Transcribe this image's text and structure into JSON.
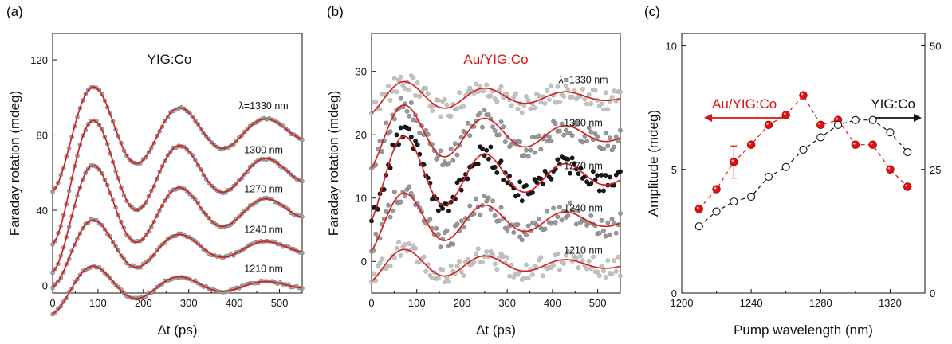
{
  "panels": {
    "a": {
      "label": "(a)"
    },
    "b": {
      "label": "(b)"
    },
    "c": {
      "label": "(c)"
    }
  },
  "chart_data": [
    {
      "id": "a",
      "type": "line",
      "ylabel": "Faraday rotation (mdeg)",
      "xlabel": "Δt (ps)",
      "annotation": "YIG:Co",
      "xlim": [
        0,
        550
      ],
      "ylim": [
        -4,
        134
      ],
      "xticks": [
        0,
        100,
        200,
        300,
        400,
        500
      ],
      "yticks": [
        0,
        40,
        80,
        120
      ],
      "colors": {
        "fit": "#d62020",
        "data": "#a9a9a9",
        "data_edge": "#6e6e6e"
      },
      "series": [
        {
          "name": "1210 nm",
          "offset": 0,
          "A": 15,
          "period": 190,
          "tau": 240,
          "phase": 93,
          "pts": 92
        },
        {
          "name": "1240 nm",
          "offset": 20,
          "A": 21,
          "period": 190,
          "tau": 260,
          "phase": 93,
          "pts": 92
        },
        {
          "name": "1270 nm",
          "offset": 40,
          "A": 33,
          "period": 190,
          "tau": 280,
          "phase": 93,
          "pts": 92
        },
        {
          "name": "1300 nm",
          "offset": 60,
          "A": 38,
          "period": 190,
          "tau": 290,
          "phase": 93,
          "pts": 92
        },
        {
          "name": "λ=1330 nm",
          "offset": 82,
          "A": 32,
          "period": 190,
          "tau": 300,
          "phase": 93,
          "pts": 92
        }
      ]
    },
    {
      "id": "b",
      "type": "line",
      "ylabel": "Faraday rotation (mdeg)",
      "xlabel": "Δt (ps)",
      "annotation": "Au/YIG:Co",
      "xlim": [
        0,
        550
      ],
      "ylim": [
        -5,
        36
      ],
      "xticks": [
        0,
        100,
        200,
        300,
        400,
        500
      ],
      "yticks": [
        0,
        10,
        20,
        30
      ],
      "colors": {
        "fit": "#d62020",
        "data_light": "#c4c4c4",
        "data_mid": "#9a9a9a",
        "data_dark": "#1a1a1a"
      },
      "series": [
        {
          "name": "1210 nm",
          "offset": -0.5,
          "A": 3,
          "period": 178,
          "tau": 320,
          "phase": 75,
          "pts": 120,
          "shade": "light"
        },
        {
          "name": "1240 nm",
          "offset": 6.5,
          "A": 5.5,
          "period": 178,
          "tau": 300,
          "phase": 75,
          "pts": 120,
          "shade": "mid"
        },
        {
          "name": "1270 nm",
          "offset": 13.5,
          "A": 8,
          "period": 178,
          "tau": 300,
          "phase": 75,
          "pts": 120,
          "shade": "dark"
        },
        {
          "name": "1300 nm",
          "offset": 20,
          "A": 6,
          "period": 178,
          "tau": 300,
          "phase": 75,
          "pts": 120,
          "shade": "mid"
        },
        {
          "name": "λ=1330 nm",
          "offset": 26,
          "A": 3,
          "period": 178,
          "tau": 320,
          "phase": 75,
          "pts": 120,
          "shade": "light"
        }
      ]
    },
    {
      "id": "c",
      "type": "scatter",
      "xlabel": "Pump wavelength (nm)",
      "ylabel": "Amplitude (mdeg)",
      "xlim": [
        1200,
        1340
      ],
      "ylim": [
        0,
        10.5
      ],
      "xticks": [
        1200,
        1240,
        1280,
        1320
      ],
      "yticks": [
        0,
        5,
        10
      ],
      "y2lim": [
        0,
        52.5
      ],
      "y2ticks": [
        0,
        25,
        50
      ],
      "series": [
        {
          "name": "Au/YIG:Co",
          "axis": "left",
          "color": "#e01010",
          "marker": "filled",
          "x": [
            1210,
            1220,
            1230,
            1240,
            1250,
            1260,
            1270,
            1280,
            1290,
            1300,
            1310,
            1320,
            1330
          ],
          "y": [
            3.4,
            4.2,
            5.3,
            6.0,
            6.8,
            7.2,
            8.0,
            6.8,
            7.0,
            6.0,
            6.0,
            5.0,
            4.3
          ],
          "errorbar": {
            "x": 1230,
            "y": 5.3,
            "err": 0.65
          }
        },
        {
          "name": "YIG:Co",
          "axis": "right",
          "color": "#111111",
          "marker": "open",
          "x": [
            1210,
            1220,
            1230,
            1240,
            1250,
            1260,
            1270,
            1280,
            1290,
            1300,
            1310,
            1320,
            1330
          ],
          "y": [
            13.5,
            16.5,
            18.5,
            19.5,
            23.5,
            25.5,
            29.0,
            31.5,
            34.0,
            35.0,
            35.0,
            32.5,
            28.5
          ]
        }
      ]
    }
  ]
}
